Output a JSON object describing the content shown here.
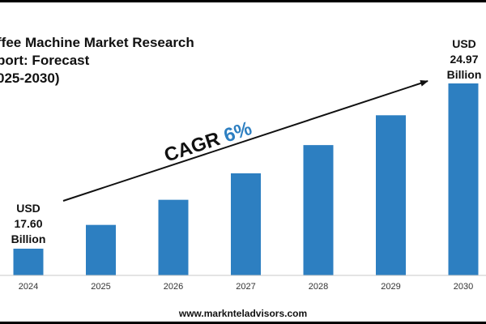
{
  "title_lines": [
    "ffee Machine Market Research",
    "port: Forecast",
    "025-2030)"
  ],
  "footer": "www.marknteladvisors.com",
  "cagr": {
    "prefix": "CAGR ",
    "value": "6%"
  },
  "colors": {
    "bar": "#2d7fc1",
    "cagr_value": "#2d7fc1",
    "text": "#111111"
  },
  "chart_data": {
    "type": "bar",
    "categories": [
      "2024",
      "2025",
      "2026",
      "2027",
      "2028",
      "2029",
      "2030"
    ],
    "values": [
      17.6,
      18.66,
      19.78,
      20.96,
      22.22,
      23.55,
      24.97
    ],
    "labels": {
      "start": [
        "USD",
        "17.60",
        "Billion"
      ],
      "end": [
        "USD",
        "24.97",
        "Billion"
      ]
    },
    "grid": false,
    "legend": "none"
  }
}
